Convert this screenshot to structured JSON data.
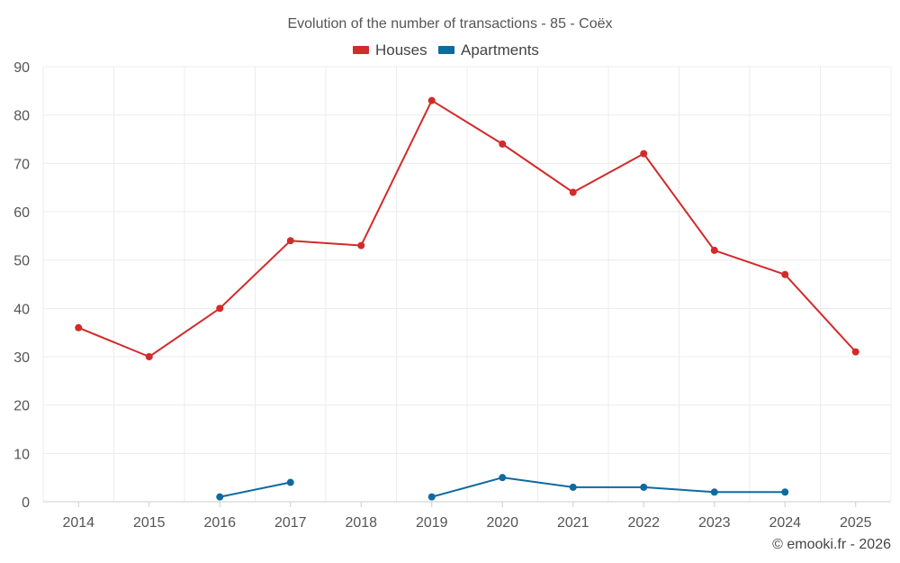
{
  "chart_data": {
    "type": "line",
    "title": "Evolution of the number of transactions - 85 - Coëx",
    "categories": [
      "2014",
      "2015",
      "2016",
      "2017",
      "2018",
      "2019",
      "2020",
      "2021",
      "2022",
      "2023",
      "2024",
      "2025"
    ],
    "ylim": [
      0,
      90
    ],
    "yticks": [
      "0",
      "10",
      "20",
      "30",
      "40",
      "50",
      "60",
      "70",
      "80",
      "90"
    ],
    "ytick_values": [
      0,
      10,
      20,
      30,
      40,
      50,
      60,
      70,
      80,
      90
    ],
    "grid": true,
    "legend_position": "top-center",
    "series": [
      {
        "name": "Houses",
        "color": "#d32a2a",
        "values": [
          36,
          30,
          40,
          54,
          53,
          83,
          74,
          64,
          72,
          52,
          47,
          31
        ]
      },
      {
        "name": "Apartments",
        "color": "#0e6aa0",
        "values": [
          null,
          null,
          1,
          4,
          null,
          1,
          5,
          3,
          3,
          2,
          2,
          null
        ]
      }
    ],
    "credit": "© emooki.fr - 2026"
  }
}
